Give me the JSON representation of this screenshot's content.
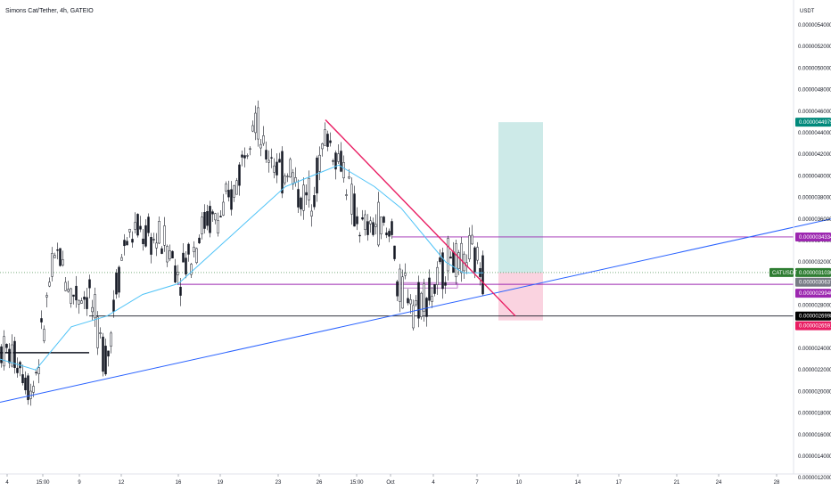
{
  "header": {
    "title": "Simons Cat/Tether, 4h, GATEIO"
  },
  "price_axis": {
    "currency": "USDT",
    "ticks": [
      "0.0000054000",
      "0.0000052000",
      "0.0000050000",
      "0.0000048000",
      "0.0000046000",
      "0.0000044000",
      "0.0000042000",
      "0.0000040000",
      "0.0000038000",
      "0.0000036000",
      "0.0000034000",
      "0.0000032000",
      "0.0000030000",
      "0.0000028000",
      "0.0000026000",
      "0.0000024000",
      "0.0000022000",
      "0.0000020000",
      "0.0000018000",
      "0.0000016000",
      "0.0000014000",
      "0.0000012000"
    ]
  },
  "time_axis": {
    "ticks": [
      "4",
      "15:00",
      "9",
      "12",
      "16",
      "19",
      "23",
      "26",
      "15:00",
      "Oct",
      "4",
      "7",
      "10",
      "14",
      "17",
      "21",
      "24",
      "28"
    ]
  },
  "badges": {
    "target": "0.0000044979",
    "upper_level": "0.0000034334",
    "symbol": "CATUSDT",
    "last_price": "0.0000031030",
    "countdown": "0.0000030637",
    "entry": "0.0000029940",
    "support": "0.0000026998",
    "stop": "0.0000026591"
  },
  "colors": {
    "candle": "#131722",
    "ema": "#4fc3f7",
    "trendline_up": "#2962ff",
    "trendline_down": "#e91e63",
    "purple": "#9c27b0",
    "target_zone": "#b2dfdb",
    "stop_zone": "#f8bbd0",
    "last_price_badge": "#2e7d32",
    "countdown_badge": "#787b86",
    "target_badge": "#00897b",
    "stop_badge": "#e91e63"
  },
  "chart_data": {
    "type": "candlestick",
    "title": "Simons Cat/Tether, 4h, GATEIO",
    "ylabel": "USDT",
    "ylim": [
      1.1e-06,
      5.5e-06
    ],
    "scale": "linear",
    "grid": false,
    "x_tick_labels": [
      "4",
      "15:00",
      "9",
      "12",
      "16",
      "19",
      "23",
      "26",
      "15:00",
      "Oct",
      "4",
      "7",
      "10",
      "14",
      "17",
      "21",
      "24",
      "28"
    ],
    "path": [
      [
        0,
        2.4e-06
      ],
      [
        20,
        2.3e-06
      ],
      [
        35,
        2e-06
      ],
      [
        45,
        2.4e-06
      ],
      [
        55,
        3e-06
      ],
      [
        65,
        3.3e-06
      ],
      [
        80,
        2.9e-06
      ],
      [
        100,
        2.9e-06
      ],
      [
        110,
        2.5e-06
      ],
      [
        120,
        2.3e-06
      ],
      [
        130,
        3e-06
      ],
      [
        140,
        3.4e-06
      ],
      [
        155,
        3.5e-06
      ],
      [
        170,
        3.4e-06
      ],
      [
        185,
        3.4e-06
      ],
      [
        200,
        3.1e-06
      ],
      [
        215,
        3.3e-06
      ],
      [
        230,
        3.6e-06
      ],
      [
        245,
        3.6e-06
      ],
      [
        260,
        3.8e-06
      ],
      [
        270,
        4.1e-06
      ],
      [
        280,
        4.5e-06
      ],
      [
        285,
        4.6e-06
      ],
      [
        295,
        4.2e-06
      ],
      [
        305,
        4.2e-06
      ],
      [
        315,
        4e-06
      ],
      [
        325,
        4.1e-06
      ],
      [
        335,
        3.8e-06
      ],
      [
        345,
        3.8e-06
      ],
      [
        355,
        4e-06
      ],
      [
        365,
        4.4e-06
      ],
      [
        375,
        4.2e-06
      ],
      [
        385,
        4.1e-06
      ],
      [
        395,
        3.7e-06
      ],
      [
        405,
        3.5e-06
      ],
      [
        415,
        3.5e-06
      ],
      [
        425,
        3.6e-06
      ],
      [
        435,
        3.4e-06
      ],
      [
        440,
        3.6e-06
      ],
      [
        445,
        2.9e-06
      ],
      [
        455,
        3e-06
      ],
      [
        465,
        2.8e-06
      ],
      [
        475,
        2.9e-06
      ],
      [
        485,
        2.9e-06
      ],
      [
        495,
        3.1e-06
      ],
      [
        505,
        3.3e-06
      ],
      [
        515,
        3.1e-06
      ],
      [
        525,
        3.3e-06
      ],
      [
        535,
        3.2e-06
      ],
      [
        542,
        3.1e-06
      ]
    ],
    "ema_path": [
      [
        0,
        2.3e-06
      ],
      [
        40,
        2.2e-06
      ],
      [
        80,
        2.6e-06
      ],
      [
        120,
        2.7e-06
      ],
      [
        160,
        2.9e-06
      ],
      [
        200,
        3e-06
      ],
      [
        240,
        3.3e-06
      ],
      [
        280,
        3.6e-06
      ],
      [
        320,
        3.9e-06
      ],
      [
        350,
        4e-06
      ],
      [
        380,
        4.1e-06
      ],
      [
        420,
        3.9e-06
      ],
      [
        450,
        3.7e-06
      ],
      [
        480,
        3.4e-06
      ],
      [
        500,
        3.2e-06
      ],
      [
        520,
        3.1e-06
      ],
      [
        542,
        3.1e-06
      ]
    ],
    "trendline_up": {
      "from": [
        0,
        1.9e-06
      ],
      "to": [
        932,
        3.6e-06
      ]
    },
    "trendline_down": {
      "from": [
        365,
        4.52e-06
      ],
      "to": [
        578,
        2.7e-06
      ]
    },
    "levels": [
      {
        "name": "upper-level-line",
        "y": 3.4334e-06,
        "x_from": 440,
        "x_to": 890,
        "color": "#9c27b0"
      },
      {
        "name": "entry-line",
        "y": 2.994e-06,
        "x_from": 200,
        "x_to": 890,
        "color": "#9c27b0"
      },
      {
        "name": "support-line",
        "y": 2.6998e-06,
        "x_from": 100,
        "x_to": 890,
        "color": "#131722"
      },
      {
        "name": "left-support-line",
        "y": 2.36e-06,
        "x_from": 0,
        "x_to": 100,
        "color": "#131722"
      }
    ],
    "position": {
      "entry": 3.103e-06,
      "target": 4.4979e-06,
      "stop": 2.6591e-06
    }
  }
}
